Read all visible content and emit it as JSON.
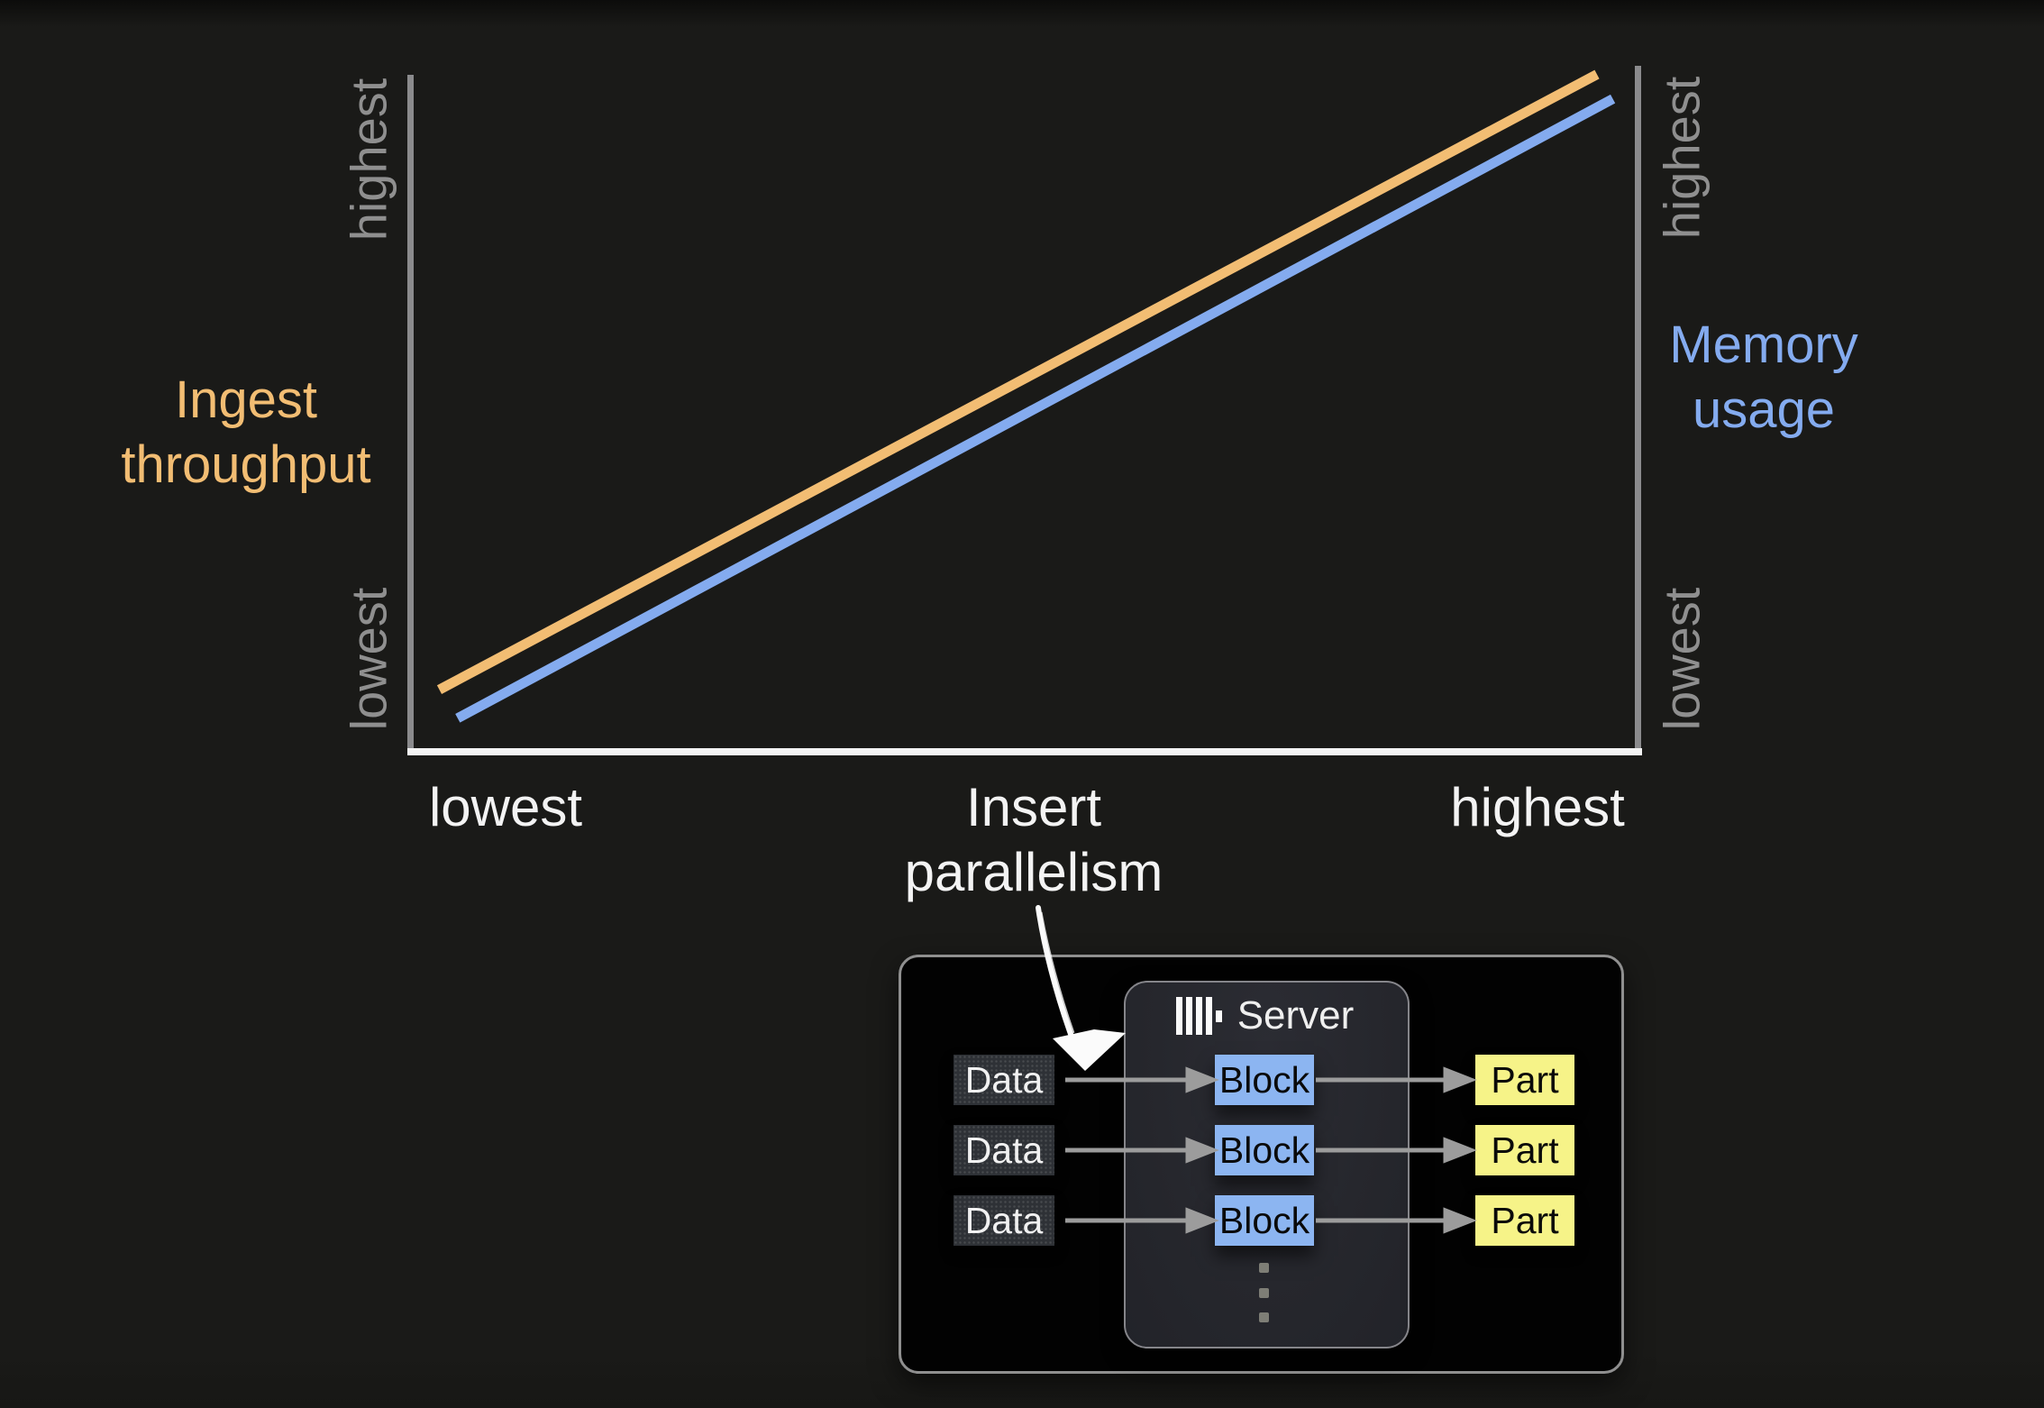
{
  "chart_data": {
    "type": "line",
    "title": "",
    "xlabel": "Insert parallelism",
    "x_axis": {
      "title_lines": [
        "Insert",
        "parallelism"
      ],
      "left_tick": "lowest",
      "right_tick": "highest"
    },
    "left_axis": {
      "title_lines": [
        "Ingest",
        "throughput"
      ],
      "top_tick": "highest",
      "bottom_tick": "lowest"
    },
    "right_axis": {
      "title_lines": [
        "Memory",
        "usage"
      ],
      "top_tick": "highest",
      "bottom_tick": "lowest"
    },
    "series": [
      {
        "name": "Ingest throughput",
        "axis": "left",
        "color": "#f2bd73",
        "x": [
          0.021,
          0.969
        ],
        "y": [
          0.086,
          0.99
        ],
        "trend": "linear increasing"
      },
      {
        "name": "Memory usage",
        "axis": "right",
        "color": "#84abef",
        "x": [
          0.036,
          0.982
        ],
        "y": [
          0.044,
          0.954
        ],
        "trend": "linear increasing"
      }
    ],
    "grid": false,
    "legend": "none",
    "qualitative_scale": [
      "lowest",
      "highest"
    ]
  },
  "diagram": {
    "server_title": "Server",
    "rows": [
      {
        "input": "Data",
        "process": "Block",
        "output": "Part"
      },
      {
        "input": "Data",
        "process": "Block",
        "output": "Part"
      },
      {
        "input": "Data",
        "process": "Block",
        "output": "Part"
      }
    ]
  },
  "colors": {
    "bg": "#1a1a18",
    "accent-orange": "#f2bd73",
    "accent-blue": "#84abef",
    "axis-gray": "#8b8b8d",
    "tick-gray": "#8f8f8f",
    "text-white": "#f3f3f3",
    "block-blue": "#8cb5f1",
    "part-yellow": "#f6f388",
    "data-box-bg": "#2e3136",
    "server-bg": "#26272d",
    "outer-box-bg": "#020202",
    "border-gray": "#8f8f8f",
    "flow-arrow-gray": "#9c9c9c"
  }
}
